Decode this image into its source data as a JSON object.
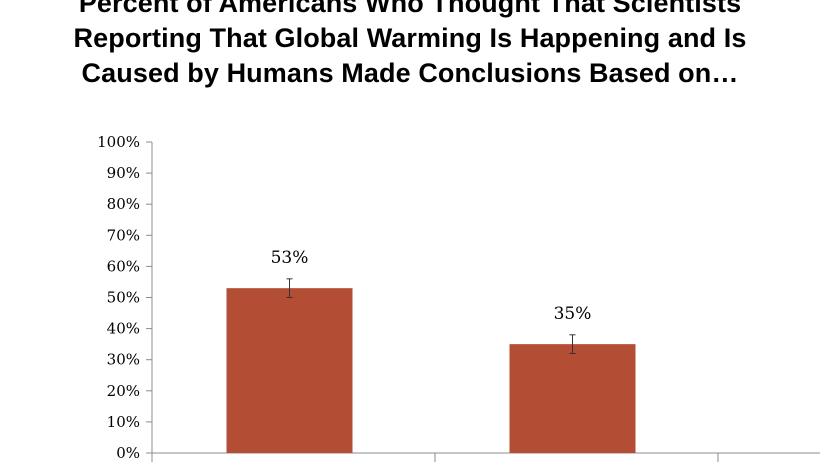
{
  "chart_data": {
    "type": "bar",
    "title_lines": [
      "Percent of Americans Who Thought That Scientists",
      "Reporting That Global Warming Is Happening and Is",
      "Caused by Humans Made Conclusions Based on…"
    ],
    "categories": [
      "",
      ""
    ],
    "values": [
      53,
      35
    ],
    "data_labels": [
      "53%",
      "35%"
    ],
    "error_bars": [
      {
        "low": 50,
        "high": 56
      },
      {
        "low": 32,
        "high": 38
      }
    ],
    "ylim": [
      0,
      100
    ],
    "yticks": [
      0,
      10,
      20,
      30,
      40,
      50,
      60,
      70,
      80,
      90,
      100
    ],
    "ytick_labels": [
      "0%",
      "10%",
      "20%",
      "30%",
      "40%",
      "50%",
      "60%",
      "70%",
      "80%",
      "90%",
      "100%"
    ],
    "xlabel": "",
    "ylabel": "",
    "grid": false,
    "legend": "none",
    "colors": {
      "bar": "#b34d33",
      "axis": "#8c8c8c",
      "error_bar": "#333333"
    }
  }
}
